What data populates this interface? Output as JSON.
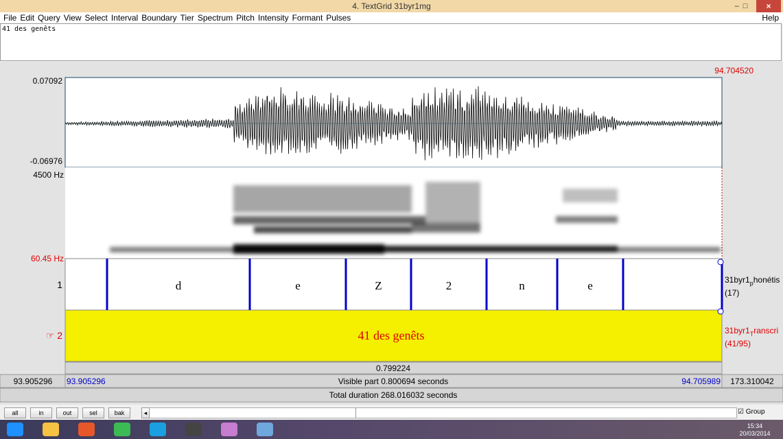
{
  "window": {
    "title": "4. TextGrid 31byr1mg"
  },
  "menu": {
    "items": [
      "File",
      "Edit",
      "Query",
      "View",
      "Select",
      "Interval",
      "Boundary",
      "Tier",
      "Spectrum",
      "Pitch",
      "Intensity",
      "Formant",
      "Pulses"
    ],
    "help": "Help"
  },
  "text_field": "41 des genêts",
  "cursor_time": "94.704520",
  "waveform": {
    "max": "0.07092",
    "min": "-0.06976"
  },
  "spectrogram": {
    "max": "4500 Hz",
    "min": "60.45 Hz"
  },
  "tiers": [
    {
      "number": "1",
      "name_before": "31byr1",
      "name_sub": "p",
      "name_after": "honétis",
      "count": "(17)",
      "intervals": [
        "d",
        "e",
        "Z",
        "2",
        "n",
        "e"
      ]
    },
    {
      "marker": "☞ 2",
      "name_before": "31byr1",
      "name_sub": "T",
      "name_after": "ranscri",
      "count": "(41/95)",
      "text": "41 des genêts"
    }
  ],
  "selection_duration": "0.799224",
  "visible": {
    "window_start": "93.905296",
    "start": "93.905296",
    "label": "Visible part 0.800694 seconds",
    "end": "94.705989",
    "window_end": "173.310042"
  },
  "total": "Total duration 268.016032 seconds",
  "buttons": [
    "all",
    "in",
    "out",
    "sel",
    "bak"
  ],
  "group": "Group",
  "clock": {
    "time": "15:34",
    "date": "20/03/2014"
  }
}
